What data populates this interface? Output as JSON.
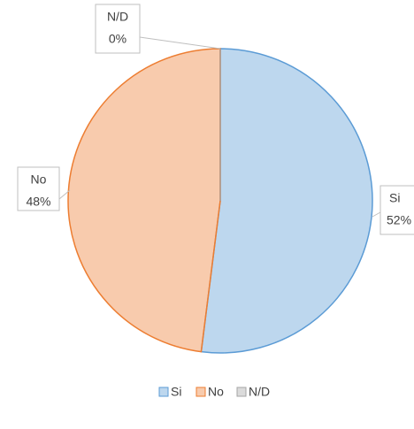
{
  "chart_data": {
    "type": "pie",
    "categories": [
      "Si",
      "No",
      "N/D"
    ],
    "values": [
      52,
      48,
      0
    ],
    "value_labels": [
      "52%",
      "48%",
      "0%"
    ],
    "colors": [
      "#5b9bd5",
      "#ed7d31",
      "#a5a5a5"
    ],
    "legend": "bottom"
  }
}
